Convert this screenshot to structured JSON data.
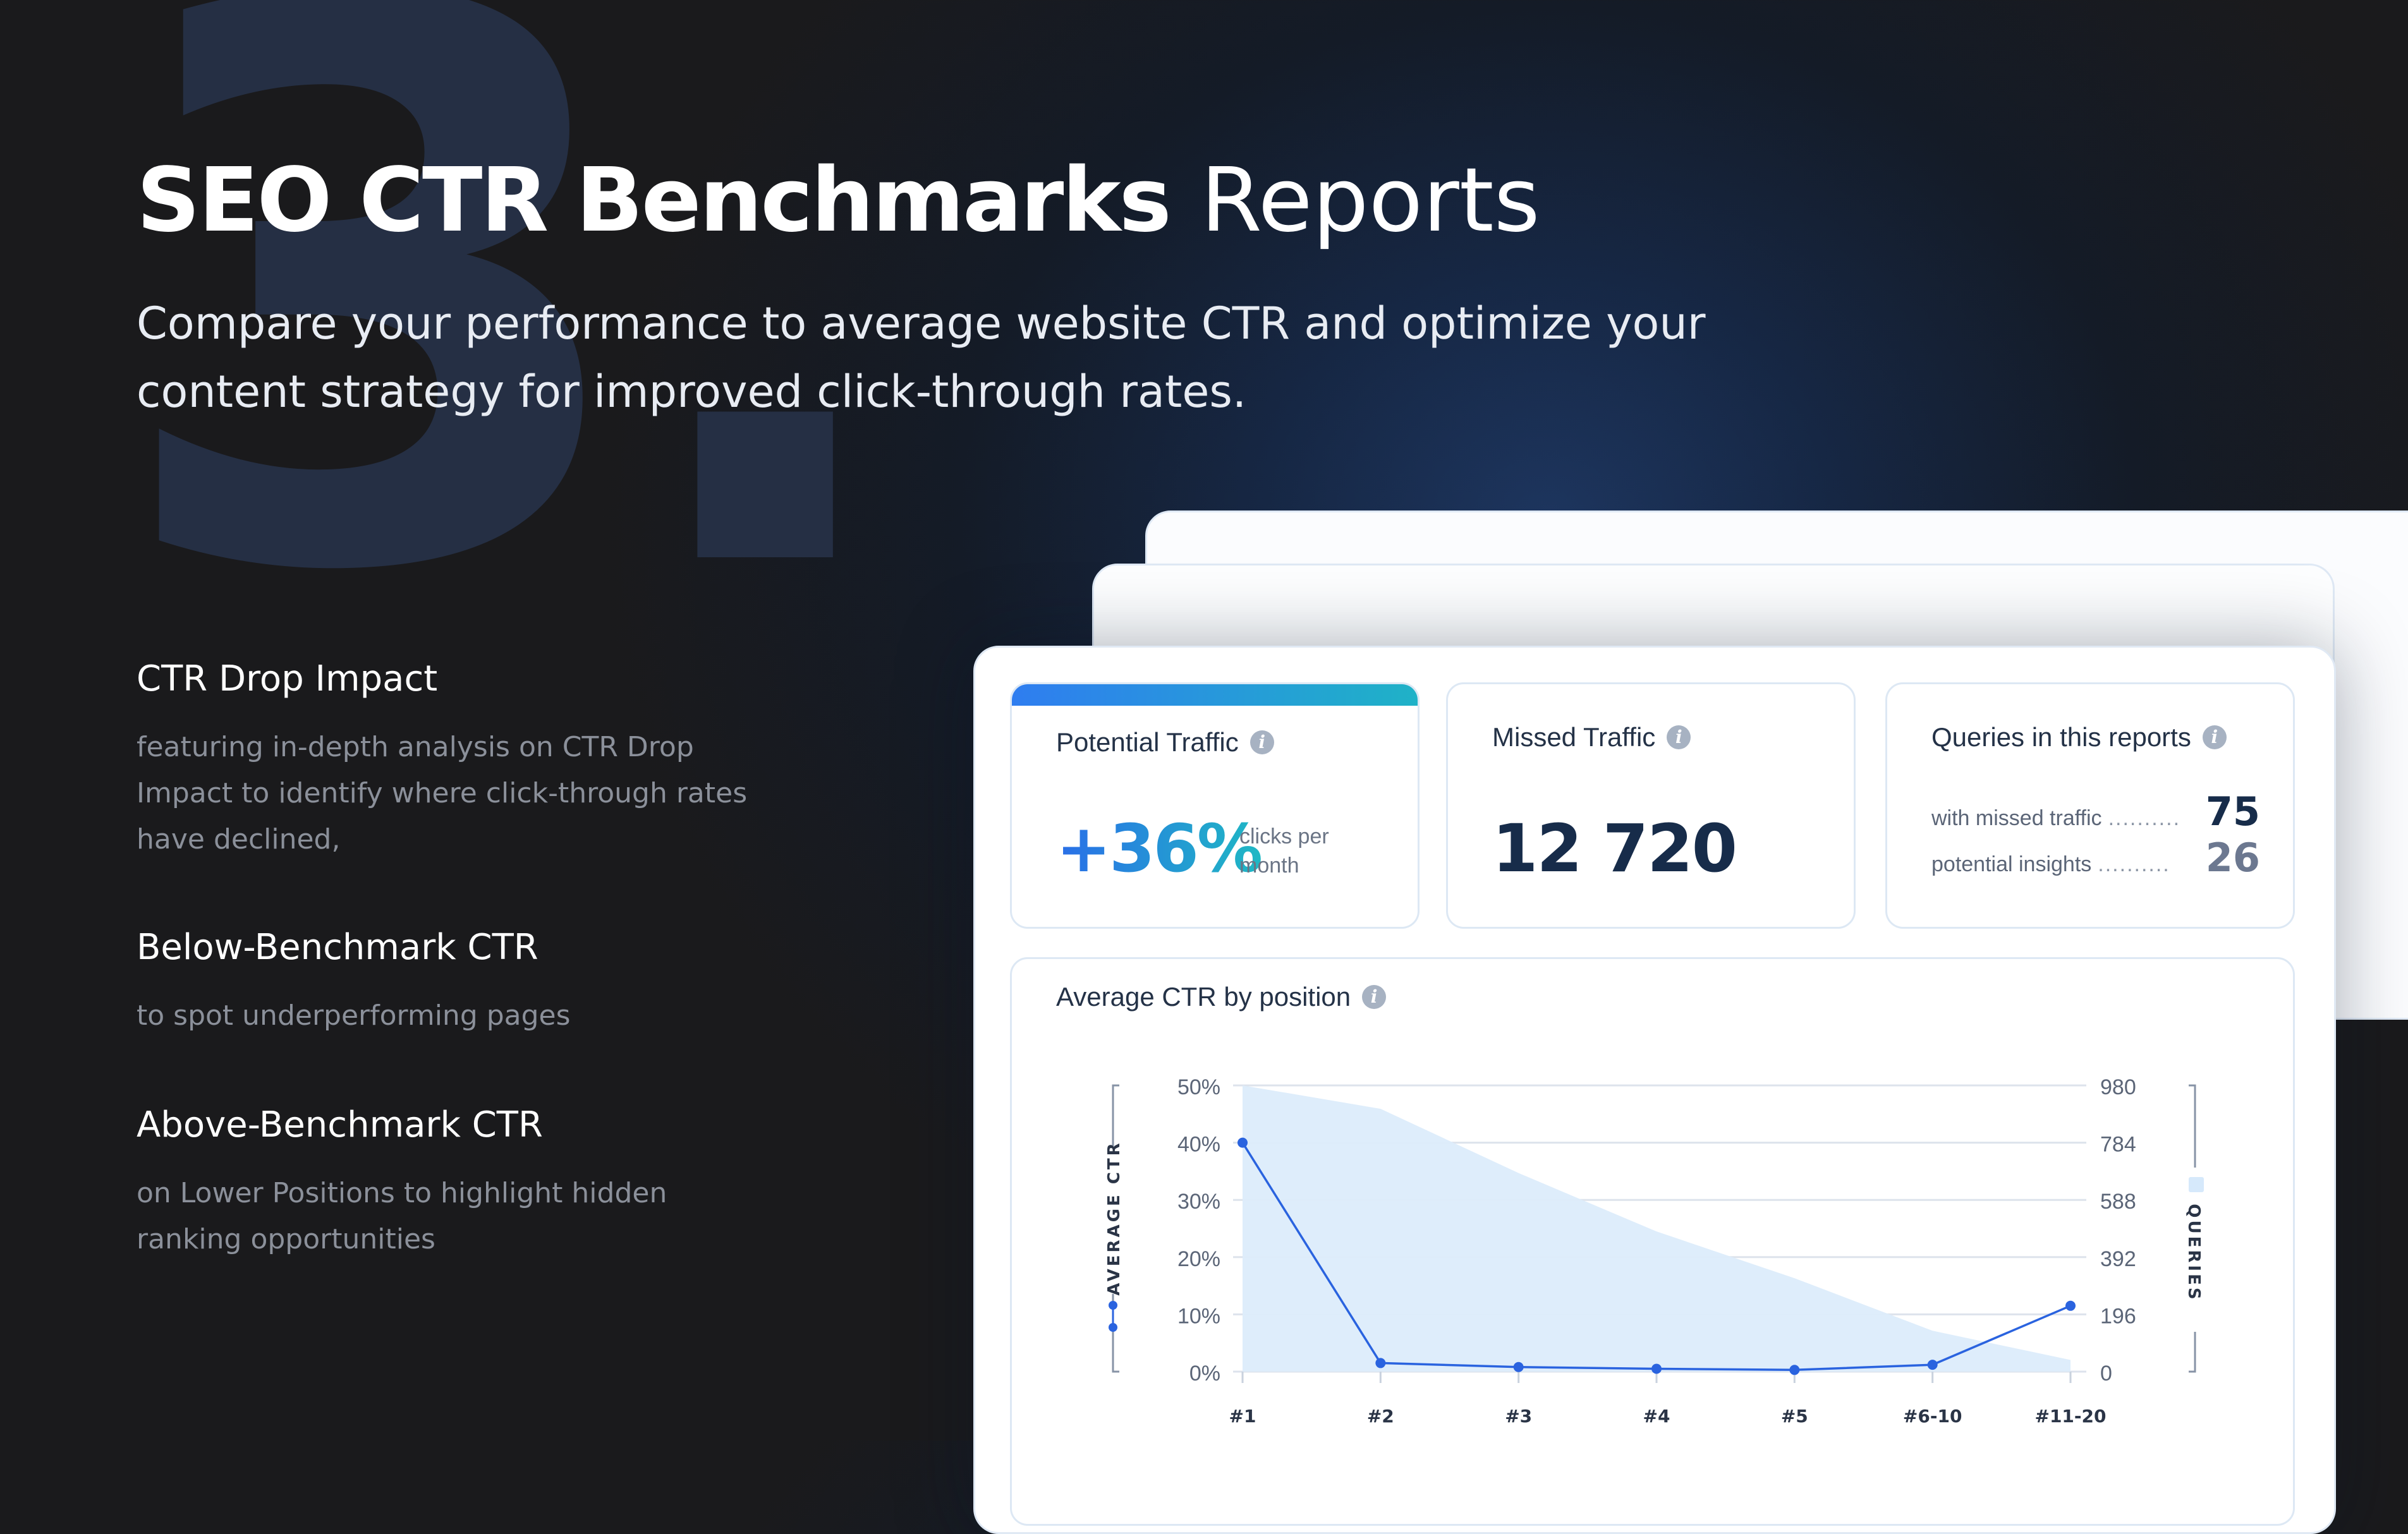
{
  "hero": {
    "title_bold": "SEO CTR Benchmarks",
    "title_light": "Reports",
    "subtitle": "Compare your performance to average website CTR and optimize your content strategy for improved click-through rates.",
    "background_numeral": "3."
  },
  "features": [
    {
      "title": "CTR Drop Impact",
      "description": "featuring in-depth analysis on CTR Drop Impact to identify where click-through rates have declined,"
    },
    {
      "title": "Below-Benchmark CTR",
      "description": "to spot underperforming pages"
    },
    {
      "title": "Above-Benchmark CTR",
      "description": "on Lower Positions to highlight hidden ranking opportunities"
    }
  ],
  "cards": {
    "potential": {
      "label": "Potential Traffic",
      "value": "+36%",
      "unit": "clicks per month",
      "info_icon": "info-icon"
    },
    "missed": {
      "label": "Missed Traffic",
      "value": "12 720",
      "info_icon": "info-icon"
    },
    "queries": {
      "label": "Queries in this reports",
      "rows": [
        {
          "label": "with missed traffic",
          "dots": "..........",
          "value": "75"
        },
        {
          "label": "potential insights",
          "dots": "..........",
          "value": "26"
        }
      ],
      "info_icon": "info-icon"
    }
  },
  "chart_data": {
    "type": "line",
    "title": "Average CTR by position",
    "x": [
      "#1",
      "#2",
      "#3",
      "#4",
      "#5",
      "#6-10",
      "#11-20"
    ],
    "y_left_label": "AVERAGE CTR",
    "y_right_label": "QUERIES",
    "y_left_ticks": [
      "0%",
      "10%",
      "20%",
      "30%",
      "40%",
      "50%"
    ],
    "y_right_ticks": [
      "0",
      "196",
      "392",
      "588",
      "784",
      "980"
    ],
    "ylim_left": [
      0,
      50
    ],
    "ylim_right": [
      0,
      980
    ],
    "grid": true,
    "series": [
      {
        "name": "AVERAGE CTR",
        "axis": "left",
        "kind": "line",
        "color": "#2a63df",
        "values": [
          40,
          1.5,
          0.8,
          0.5,
          0.3,
          1.2,
          11.5
        ]
      },
      {
        "name": "QUERIES",
        "axis": "right",
        "kind": "area",
        "color": "#dcecfb",
        "values": [
          980,
          900,
          680,
          480,
          320,
          140,
          40
        ]
      }
    ]
  },
  "colors": {
    "accent_blue": "#2a63df",
    "accent_teal": "#1fb8c4",
    "navy": "#172c4a",
    "numeral": "#252f44"
  }
}
